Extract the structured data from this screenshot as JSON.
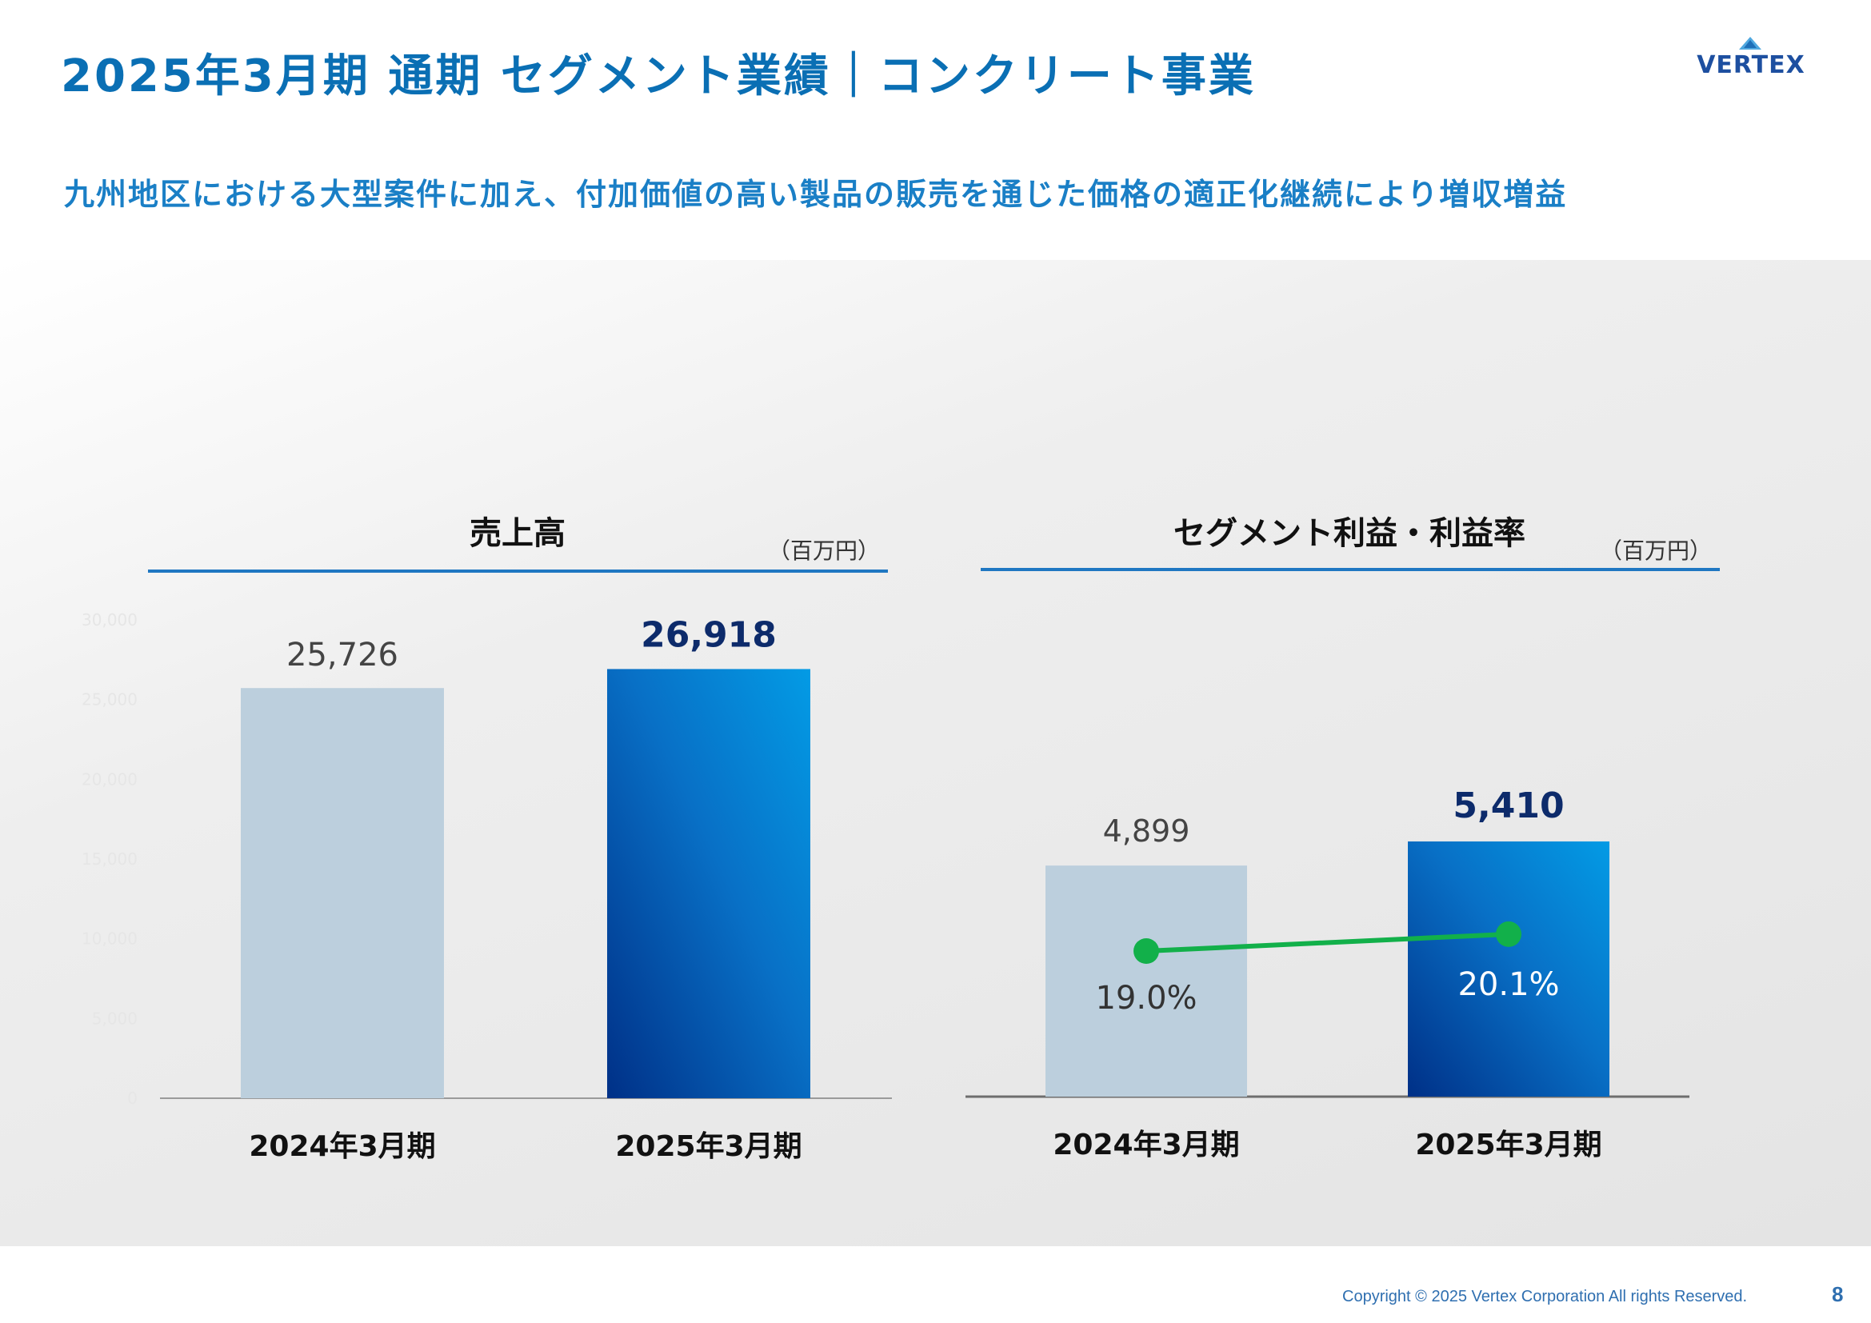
{
  "page": {
    "title": "2025年3月期 通期 セグメント業績｜コンクリート事業",
    "subtitle": "九州地区における大型案件に加え、付加価値の高い製品の販売を通じた価格の適正化継続により増収増益",
    "logo_text": "VERTEX",
    "copyright": "Copyright © 2025 Vertex Corporation All rights Reserved.",
    "page_number": "8",
    "colors": {
      "title": "#0a6fb4",
      "subtitle": "#1a7fc6",
      "prev_bar": "#bccfdd",
      "curr_bar_top": "#039be5",
      "curr_bar_bottom": "#003087",
      "highlight_value": "#0d2b6b",
      "margin_line": "#12b04a"
    }
  },
  "chart_data": [
    {
      "type": "bar",
      "title": "売上高",
      "unit": "（百万円）",
      "categories": [
        "2024年3月期",
        "2025年3月期"
      ],
      "values": [
        25726,
        26918
      ],
      "value_labels": [
        "25,726",
        "26,918"
      ],
      "ylim": [
        0,
        30000
      ],
      "yticks": [
        "0",
        "5,000",
        "10,000",
        "15,000",
        "20,000",
        "25,000",
        "30,000"
      ],
      "ytick_values": [
        0,
        5000,
        10000,
        15000,
        20000,
        25000,
        30000
      ]
    },
    {
      "type": "bar",
      "title": "セグメント利益・利益率",
      "unit": "（百万円）",
      "categories": [
        "2024年3月期",
        "2025年3月期"
      ],
      "values": [
        4899,
        5410
      ],
      "value_labels": [
        "4,899",
        "5,410"
      ],
      "ylim": [
        0,
        7800
      ],
      "margin_rate": [
        19.0,
        20.1
      ],
      "margin_labels": [
        "19.0%",
        "20.1%"
      ]
    }
  ]
}
